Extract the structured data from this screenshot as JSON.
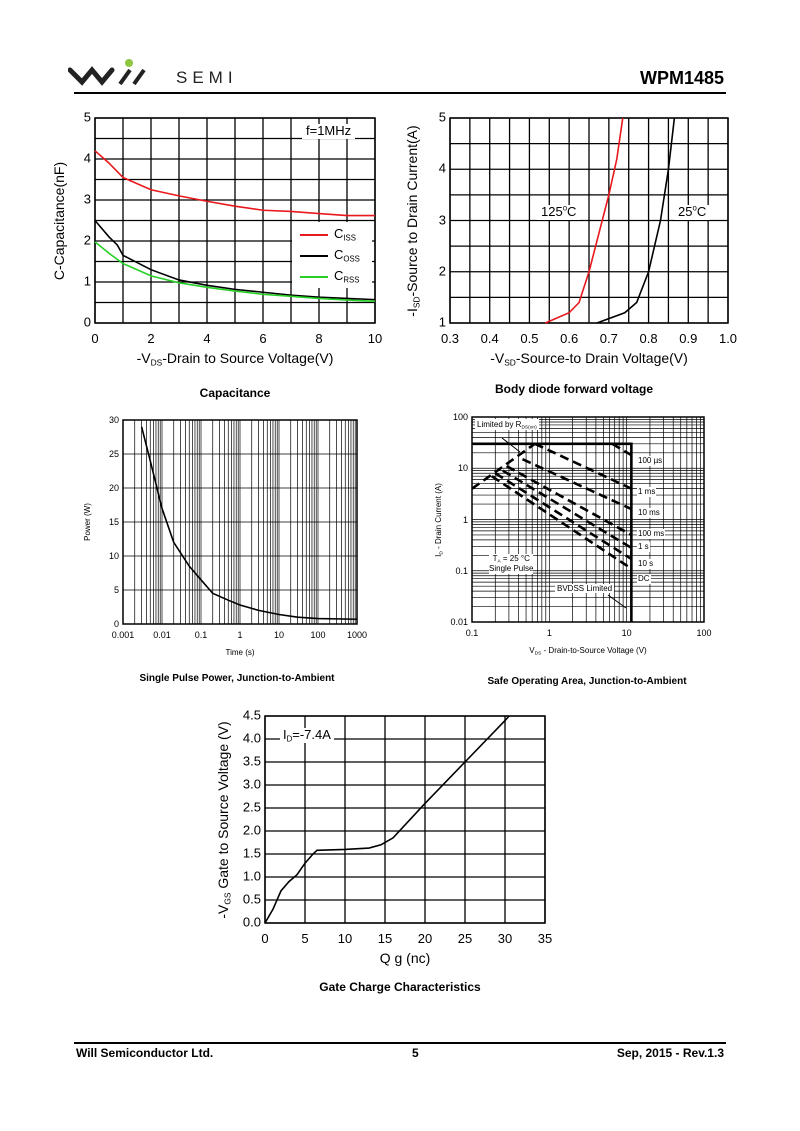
{
  "header": {
    "logo_text": "SEMI",
    "logo_brand": "will",
    "part_number": "WPM1485"
  },
  "footer": {
    "company": "Will Semiconductor Ltd.",
    "page": "5",
    "date_rev": "Sep, 2015 - Rev.1.3"
  },
  "colors": {
    "red": "#e8181c",
    "green": "#28d028",
    "black": "#000000",
    "logo_green": "#8dc63f"
  },
  "chart_data": [
    {
      "id": "capacitance",
      "type": "line",
      "title": "Capacitance",
      "xscale": "linear",
      "yscale": "linear",
      "xlim": [
        0,
        10
      ],
      "ylim": [
        0,
        5
      ],
      "xticks": [
        0,
        2,
        4,
        6,
        8,
        10
      ],
      "yticks": [
        0,
        1,
        2,
        3,
        4,
        5
      ],
      "xlabel": {
        "pre": "-V",
        "sub": "DS",
        "post": "-Drain to Source Voltage(V)"
      },
      "ylabel": {
        "pre": "C-Capacitance(nF)",
        "sub": "",
        "post": ""
      },
      "annotation": "f=1MHz",
      "series": [
        {
          "name": "C",
          "sub": "ISS",
          "color": "#e8181c",
          "points": [
            [
              0,
              4.2
            ],
            [
              0.5,
              3.9
            ],
            [
              1,
              3.55
            ],
            [
              2,
              3.25
            ],
            [
              3,
              3.1
            ],
            [
              4,
              2.97
            ],
            [
              5,
              2.85
            ],
            [
              6,
              2.75
            ],
            [
              7,
              2.72
            ],
            [
              8,
              2.67
            ],
            [
              9,
              2.62
            ],
            [
              10,
              2.62
            ]
          ]
        },
        {
          "name": "C",
          "sub": "OSS",
          "color": "#000000",
          "points": [
            [
              0,
              2.5
            ],
            [
              0.5,
              2.1
            ],
            [
              0.8,
              1.9
            ],
            [
              1,
              1.65
            ],
            [
              2,
              1.3
            ],
            [
              3,
              1.05
            ],
            [
              4,
              0.92
            ],
            [
              5,
              0.82
            ],
            [
              6,
              0.75
            ],
            [
              7,
              0.68
            ],
            [
              8,
              0.63
            ],
            [
              9,
              0.6
            ],
            [
              10,
              0.57
            ]
          ]
        },
        {
          "name": "C",
          "sub": "RSS",
          "color": "#28d028",
          "points": [
            [
              0,
              1.98
            ],
            [
              0.5,
              1.7
            ],
            [
              1,
              1.45
            ],
            [
              2,
              1.15
            ],
            [
              3,
              0.98
            ],
            [
              4,
              0.87
            ],
            [
              5,
              0.78
            ],
            [
              6,
              0.7
            ],
            [
              7,
              0.65
            ],
            [
              8,
              0.6
            ],
            [
              9,
              0.56
            ],
            [
              10,
              0.53
            ]
          ]
        }
      ],
      "legend": "right"
    },
    {
      "id": "body-diode",
      "type": "line",
      "title": "Body diode forward voltage",
      "xscale": "linear",
      "yscale": "linear",
      "xlim": [
        0.3,
        1.0
      ],
      "ylim": [
        1,
        5
      ],
      "xticks": [
        0.3,
        0.4,
        0.5,
        0.6,
        0.7,
        0.8,
        0.9,
        1.0
      ],
      "yticks": [
        1,
        2,
        3,
        4,
        5
      ],
      "xlabel": {
        "pre": "-V",
        "sub": "SD",
        "post": "-Source-to Drain Voltage(V)"
      },
      "ylabel": {
        "pre": "-I",
        "sub": "SD",
        "post": "-Source to Drain Current(A)"
      },
      "series": [
        {
          "name": "125°C",
          "color": "#e8181c",
          "points": [
            [
              0.54,
              1
            ],
            [
              0.6,
              1.2
            ],
            [
              0.625,
              1.4
            ],
            [
              0.65,
              2
            ],
            [
              0.7,
              3.5
            ],
            [
              0.72,
              4.2
            ],
            [
              0.735,
              5
            ]
          ]
        },
        {
          "name": "25°C",
          "color": "#000000",
          "points": [
            [
              0.67,
              1
            ],
            [
              0.74,
              1.2
            ],
            [
              0.77,
              1.4
            ],
            [
              0.8,
              2
            ],
            [
              0.83,
              3
            ],
            [
              0.85,
              4
            ],
            [
              0.865,
              5
            ]
          ]
        }
      ]
    },
    {
      "id": "single-pulse-power",
      "type": "line",
      "title": "Single Pulse Power, Junction-to-Ambient",
      "xscale": "log",
      "yscale": "linear",
      "xlim": [
        0.001,
        1000
      ],
      "ylim": [
        0,
        30
      ],
      "xticks": [
        0.001,
        0.01,
        0.1,
        1,
        10,
        100,
        1000
      ],
      "xtick_labels": [
        "0.001",
        "0.01",
        "0.1",
        "1",
        "10",
        "100",
        "1000"
      ],
      "yticks": [
        0,
        5,
        10,
        15,
        20,
        25,
        30
      ],
      "xlabel": {
        "pre": "Time (s)",
        "sub": "",
        "post": ""
      },
      "ylabel": {
        "pre": "Power  (W)",
        "sub": "",
        "post": ""
      },
      "series": [
        {
          "name": "Power",
          "color": "#000000",
          "points": [
            [
              0.003,
              29
            ],
            [
              0.005,
              24
            ],
            [
              0.01,
              17
            ],
            [
              0.02,
              12
            ],
            [
              0.05,
              8.5
            ],
            [
              0.1,
              6.5
            ],
            [
              0.2,
              4.5
            ],
            [
              0.5,
              3.5
            ],
            [
              1,
              2.8
            ],
            [
              3,
              2
            ],
            [
              10,
              1.4
            ],
            [
              30,
              1
            ],
            [
              100,
              0.8
            ],
            [
              1000,
              0.7
            ]
          ]
        }
      ]
    },
    {
      "id": "safe-operating-area",
      "type": "line",
      "title": "Safe Operating Area, Junction-to-Ambient",
      "xscale": "log",
      "yscale": "log",
      "xlim": [
        0.1,
        100
      ],
      "ylim": [
        0.01,
        100
      ],
      "xticks": [
        0.1,
        1,
        10,
        100
      ],
      "xtick_labels": [
        "0.1",
        "1",
        "10",
        "100"
      ],
      "yticks": [
        0.01,
        0.1,
        1,
        10,
        100
      ],
      "ytick_labels": [
        "0.01",
        "0.1",
        "1",
        "10",
        "100"
      ],
      "xlabel": {
        "pre": "V",
        "sub": "DS",
        "post": " - Drain-to-Source Voltage (V)"
      },
      "ylabel": {
        "pre": "I",
        "sub": "D",
        "post": " - Drain Current (A)"
      },
      "annotations": {
        "rds": "Limited by R",
        "rds_sub": "DS(on)",
        "ta": "T",
        "ta_sub": "A",
        "ta_post": " = 25 °C",
        "single": "Single Pulse",
        "bvdss": "BVDSS Limited"
      },
      "series": [
        {
          "name": "limit",
          "color": "#000000",
          "solid": true,
          "points": [
            [
              0.1,
              30
            ],
            [
              11.5,
              30
            ],
            [
              11.5,
              0.01
            ]
          ]
        },
        {
          "name": "Limited by RDS(on)",
          "color": "#000000",
          "points": [
            [
              0.1,
              4
            ],
            [
              0.65,
              30
            ]
          ]
        },
        {
          "name": "100 µs",
          "color": "#000000",
          "points": [
            [
              6.5,
              30
            ],
            [
              11.5,
              18
            ]
          ]
        },
        {
          "name": "1 ms",
          "color": "#000000",
          "points": [
            [
              0.65,
              30
            ],
            [
              11.5,
              4
            ]
          ]
        },
        {
          "name": "10 ms",
          "color": "#000000",
          "points": [
            [
              0.45,
              15
            ],
            [
              11.5,
              1.6
            ]
          ]
        },
        {
          "name": "100 ms",
          "color": "#000000",
          "points": [
            [
              0.28,
              11
            ],
            [
              11.5,
              0.5
            ]
          ]
        },
        {
          "name": "1 s",
          "color": "#000000",
          "points": [
            [
              0.25,
              9
            ],
            [
              11.5,
              0.28
            ]
          ]
        },
        {
          "name": "10 s",
          "color": "#000000",
          "points": [
            [
              0.2,
              8
            ],
            [
              11.5,
              0.17
            ]
          ]
        },
        {
          "name": "DC",
          "color": "#000000",
          "points": [
            [
              0.18,
              7
            ],
            [
              11.5,
              0.11
            ]
          ]
        }
      ]
    },
    {
      "id": "gate-charge",
      "type": "line",
      "title": "Gate Charge Characteristics",
      "xscale": "linear",
      "yscale": "linear",
      "xlim": [
        0,
        35
      ],
      "ylim": [
        0,
        4.5
      ],
      "xticks": [
        0,
        5,
        10,
        15,
        20,
        25,
        30,
        35
      ],
      "yticks": [
        0,
        0.5,
        1,
        1.5,
        2,
        2.5,
        3,
        3.5,
        4,
        4.5
      ],
      "ytick_labels": [
        "0.0",
        "0.5",
        "1.0",
        "1.5",
        "2.0",
        "2.5",
        "3.0",
        "3.5",
        "4.0",
        "4.5"
      ],
      "xlabel": {
        "pre": "Q g (nc)",
        "sub": "",
        "post": ""
      },
      "ylabel": {
        "pre": "-V",
        "sub": "GS",
        "post": " Gate to Source Voltage (V)"
      },
      "annotation": "I",
      "annotation_sub": "D",
      "annotation_post": "=-7.4A",
      "series": [
        {
          "name": "VGS",
          "color": "#000000",
          "points": [
            [
              0,
              0
            ],
            [
              1,
              0.3
            ],
            [
              2,
              0.7
            ],
            [
              3,
              0.9
            ],
            [
              4,
              1.05
            ],
            [
              5,
              1.3
            ],
            [
              6,
              1.5
            ],
            [
              6.5,
              1.58
            ],
            [
              10,
              1.6
            ],
            [
              13,
              1.63
            ],
            [
              14.5,
              1.7
            ],
            [
              16,
              1.85
            ],
            [
              20,
              2.6
            ],
            [
              25,
              3.5
            ],
            [
              30,
              4.4
            ],
            [
              30.5,
              4.5
            ]
          ]
        }
      ]
    }
  ]
}
